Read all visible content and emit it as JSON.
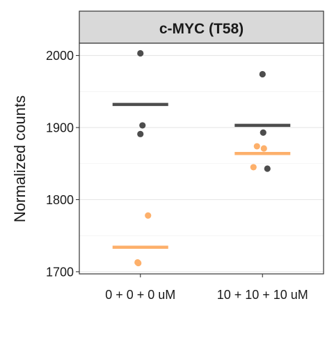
{
  "chart_data": {
    "type": "scatter",
    "title": "c-MYC (T58)",
    "xlabel": "",
    "ylabel": "Normalized counts",
    "categories": [
      "0 + 0 + 0 uM",
      "10 + 10 + 10 uM"
    ],
    "ylim": [
      1697,
      2017
    ],
    "yticks": [
      1700,
      1800,
      1900,
      2000
    ],
    "grid": true,
    "legend": "none",
    "series": [
      {
        "color": "#4d4d4d",
        "points": [
          {
            "x": "0 + 0 + 0 uM",
            "y": 2003
          },
          {
            "x": "0 + 0 + 0 uM",
            "y": 1903
          },
          {
            "x": "0 + 0 + 0 uM",
            "y": 1891
          },
          {
            "x": "10 + 10 + 10 uM",
            "y": 1974
          },
          {
            "x": "10 + 10 + 10 uM",
            "y": 1893
          },
          {
            "x": "10 + 10 + 10 uM",
            "y": 1843
          }
        ],
        "means": [
          {
            "x": "0 + 0 + 0 uM",
            "y": 1932
          },
          {
            "x": "10 + 10 + 10 uM",
            "y": 1903
          }
        ]
      },
      {
        "color": "#fdb06b",
        "points": [
          {
            "x": "0 + 0 + 0 uM",
            "y": 1778
          },
          {
            "x": "0 + 0 + 0 uM",
            "y": 1713
          },
          {
            "x": "0 + 0 + 0 uM",
            "y": 1712
          },
          {
            "x": "10 + 10 + 10 uM",
            "y": 1874
          },
          {
            "x": "10 + 10 + 10 uM",
            "y": 1871
          },
          {
            "x": "10 + 10 + 10 uM",
            "y": 1845
          }
        ],
        "means": [
          {
            "x": "0 + 0 + 0 uM",
            "y": 1734
          },
          {
            "x": "10 + 10 + 10 uM",
            "y": 1864
          }
        ]
      }
    ]
  }
}
